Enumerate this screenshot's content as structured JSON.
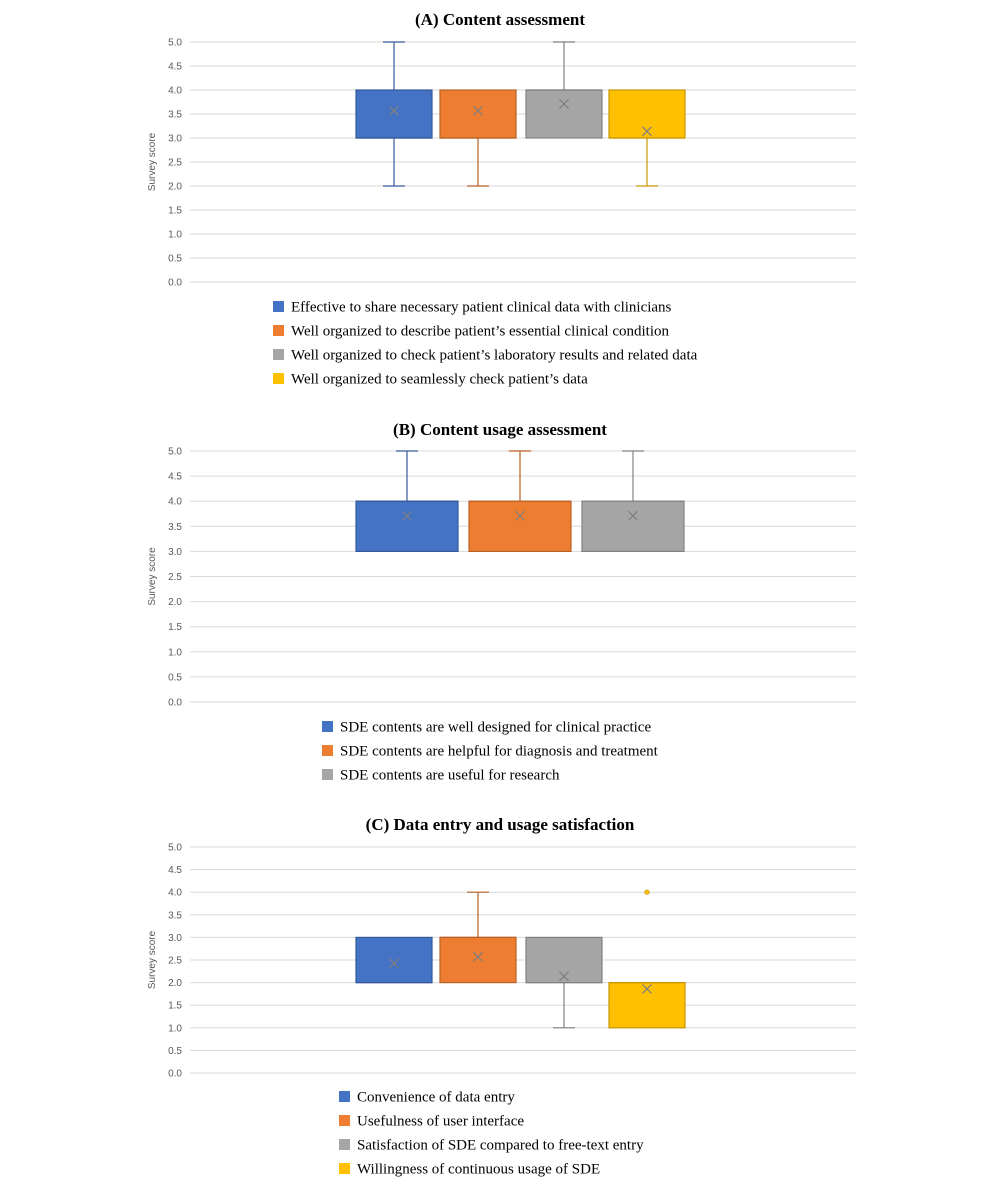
{
  "chart_data": [
    {
      "type": "box",
      "title": "(A) Content assessment",
      "ylabel": "Survey score",
      "ylim": [
        0,
        5
      ],
      "y_ticks": [
        "0.0",
        "0.5",
        "1.0",
        "1.5",
        "2.0",
        "2.5",
        "3.0",
        "3.5",
        "4.0",
        "4.5",
        "5.0"
      ],
      "grid": true,
      "legend_position": "bottom",
      "series": [
        {
          "name": "Effective to share necessary patient clinical data with clinicians",
          "color": "#4472C4",
          "min": 2.0,
          "q1": 3.0,
          "median": 3.0,
          "q3": 4.0,
          "max": 5.0,
          "mean": 3.57,
          "outliers": []
        },
        {
          "name": "Well organized to describe patient’s essential clinical condition",
          "color": "#ED7D31",
          "min": 2.0,
          "q1": 3.0,
          "median": 3.0,
          "q3": 4.0,
          "max": 4.0,
          "mean": 3.57,
          "outliers": []
        },
        {
          "name": "Well organized to check patient’s laboratory results and related data",
          "color": "#A5A5A5",
          "min": 3.0,
          "q1": 3.0,
          "median": 4.0,
          "q3": 4.0,
          "max": 5.0,
          "mean": 3.71,
          "outliers": []
        },
        {
          "name": "Well organized to seamlessly check patient’s data",
          "color": "#FFC000",
          "min": 2.0,
          "q1": 3.0,
          "median": 3.0,
          "q3": 4.0,
          "max": 4.0,
          "mean": 3.14,
          "outliers": []
        }
      ]
    },
    {
      "type": "box",
      "title": "(B) Content usage assessment",
      "ylabel": "Survey score",
      "ylim": [
        0,
        5
      ],
      "y_ticks": [
        "0.0",
        "0.5",
        "1.0",
        "1.5",
        "2.0",
        "2.5",
        "3.0",
        "3.5",
        "4.0",
        "4.5",
        "5.0"
      ],
      "grid": true,
      "legend_position": "bottom",
      "series": [
        {
          "name": "SDE contents are well designed for clinical practice",
          "color": "#4472C4",
          "min": 3.0,
          "q1": 3.0,
          "median": 4.0,
          "q3": 4.0,
          "max": 5.0,
          "mean": 3.71,
          "outliers": []
        },
        {
          "name": "SDE contents are helpful for diagnosis and treatment",
          "color": "#ED7D31",
          "min": 3.0,
          "q1": 3.0,
          "median": 4.0,
          "q3": 4.0,
          "max": 5.0,
          "mean": 3.71,
          "outliers": []
        },
        {
          "name": "SDE contents are useful for research",
          "color": "#A5A5A5",
          "min": 3.0,
          "q1": 3.0,
          "median": 4.0,
          "q3": 4.0,
          "max": 5.0,
          "mean": 3.71,
          "outliers": []
        }
      ]
    },
    {
      "type": "box",
      "title": "(C) Data entry and usage satisfaction",
      "ylabel": "Survey score",
      "ylim": [
        0,
        5
      ],
      "y_ticks": [
        "0.0",
        "0.5",
        "1.0",
        "1.5",
        "2.0",
        "2.5",
        "3.0",
        "3.5",
        "4.0",
        "4.5",
        "5.0"
      ],
      "grid": true,
      "legend_position": "bottom",
      "series": [
        {
          "name": "Convenience of data entry",
          "color": "#4472C4",
          "min": 2.0,
          "q1": 2.0,
          "median": 2.0,
          "q3": 3.0,
          "max": 3.0,
          "mean": 2.43,
          "outliers": []
        },
        {
          "name": "Usefulness of user interface",
          "color": "#ED7D31",
          "min": 2.0,
          "q1": 2.0,
          "median": 3.0,
          "q3": 3.0,
          "max": 4.0,
          "mean": 2.57,
          "outliers": []
        },
        {
          "name": "Satisfaction of SDE compared to free-text entry",
          "color": "#A5A5A5",
          "min": 1.0,
          "q1": 2.0,
          "median": 2.0,
          "q3": 3.0,
          "max": 3.0,
          "mean": 2.14,
          "outliers": []
        },
        {
          "name": "Willingness of continuous usage of SDE",
          "color": "#FFC000",
          "min": 1.0,
          "q1": 1.0,
          "median": 2.0,
          "q3": 2.0,
          "max": 2.0,
          "mean": 1.86,
          "outliers": [
            4.0
          ]
        }
      ]
    }
  ]
}
